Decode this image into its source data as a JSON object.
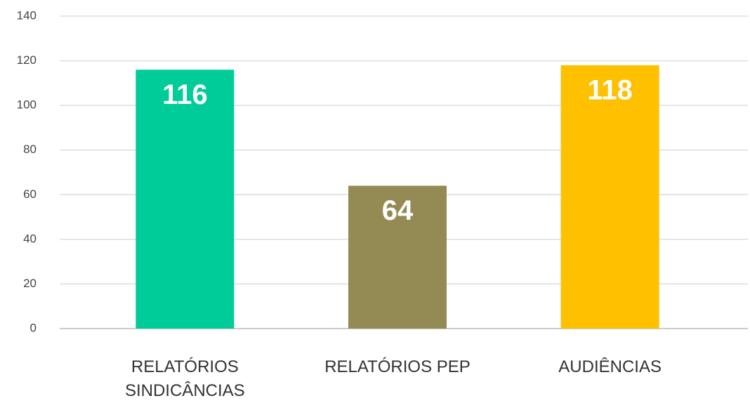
{
  "chart_data": {
    "type": "bar",
    "categories": [
      "RELATÓRIOS SINDICÂNCIAS",
      "RELATÓRIOS PEP",
      "AUDIÊNCIAS"
    ],
    "values": [
      116,
      64,
      118
    ],
    "colors": [
      "#00cc99",
      "#948a54",
      "#ffc000"
    ],
    "ylim": [
      0,
      140
    ],
    "yticks": [
      0,
      20,
      40,
      60,
      80,
      100,
      120,
      140
    ],
    "grid": true
  }
}
